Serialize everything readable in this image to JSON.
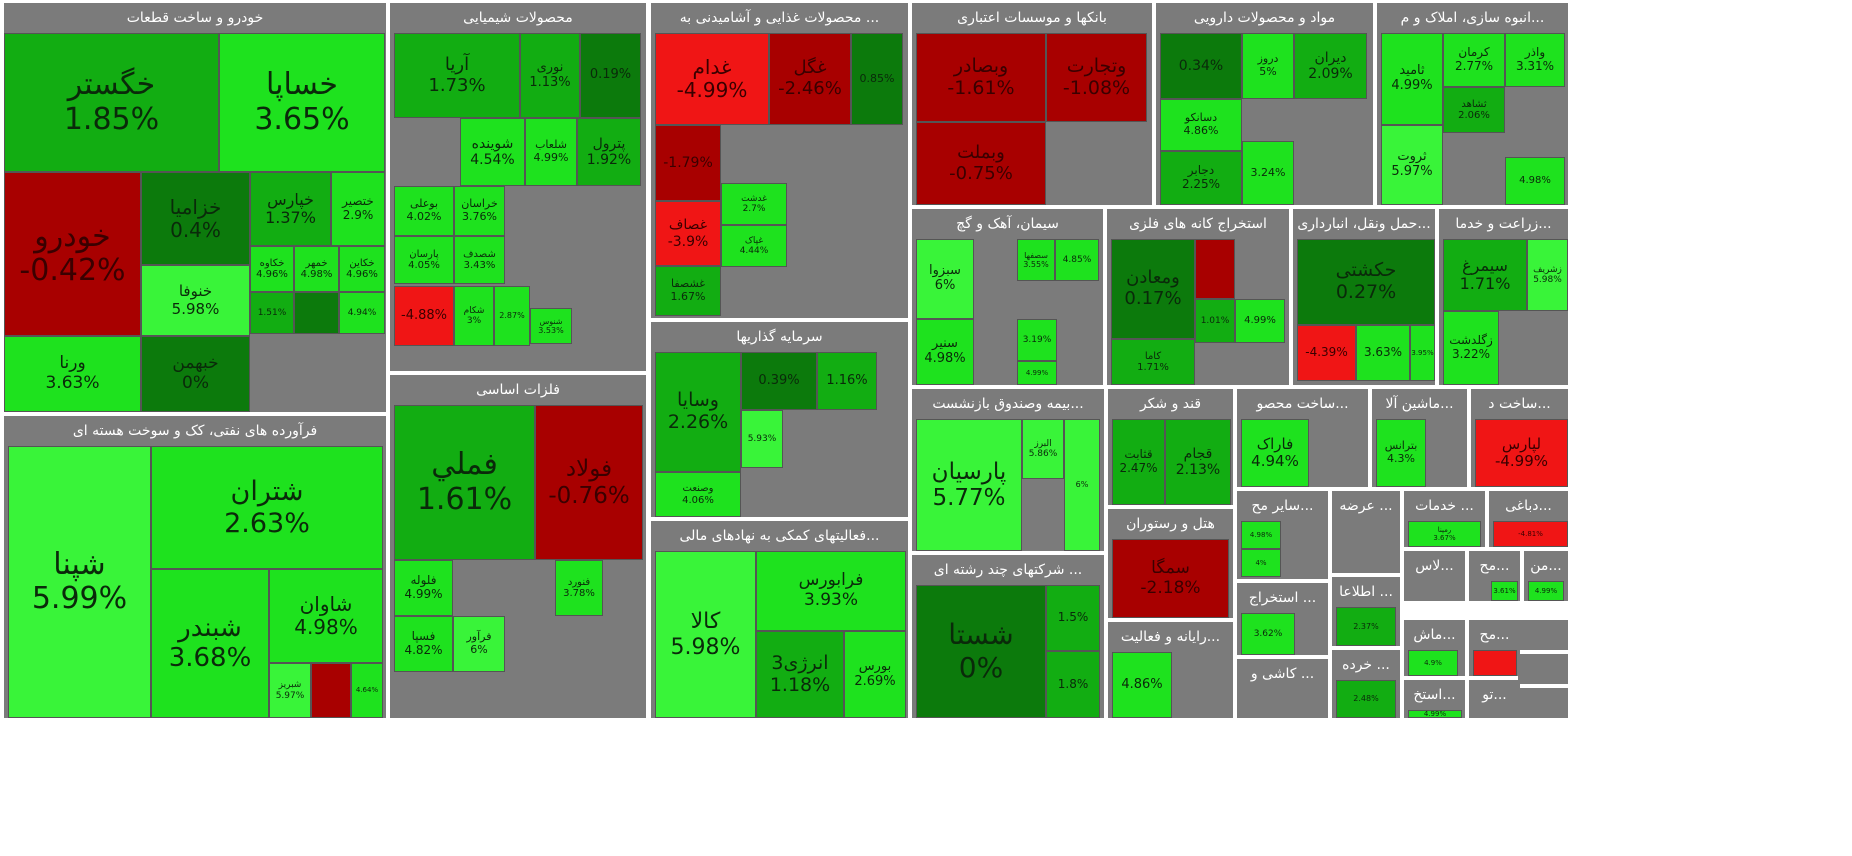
{
  "chart_data": {
    "type": "treemap",
    "colors": {
      "strong_green": "#0c7a0c",
      "mid_green": "#12ad12",
      "bright_green": "#1ee21e",
      "neon_green": "#39f439",
      "strong_red": "#a80000",
      "bright_red": "#f01515",
      "sector_header": "#7b7b7b",
      "background": "#ffffff"
    },
    "sectors": [
      {
        "name": "خودرو و ساخت قطعات",
        "tiles": [
          {
            "symbol": "خگستر",
            "change": "1.85%",
            "value": 1.85
          },
          {
            "symbol": "خساپا",
            "change": "3.65%",
            "value": 3.65
          },
          {
            "symbol": "خودرو",
            "change": "-0.42%",
            "value": -0.42
          },
          {
            "symbol": "خزامیا",
            "change": "0.4%",
            "value": 0.4
          },
          {
            "symbol": "خنوفا",
            "change": "5.98%",
            "value": 5.98
          },
          {
            "symbol": "خپارس",
            "change": "1.37%",
            "value": 1.37
          },
          {
            "symbol": "ختصیر",
            "change": "2.9%",
            "value": 2.9
          },
          {
            "symbol": "ورنا",
            "change": "3.63%",
            "value": 3.63
          },
          {
            "symbol": "خبهمن",
            "change": "0%",
            "value": 0
          },
          {
            "symbol": "خکاوه",
            "change": "4.96%",
            "value": 4.96
          },
          {
            "symbol": "خمهر",
            "change": "4.98%",
            "value": 4.98
          },
          {
            "symbol": "خکاین",
            "change": "4.96%",
            "value": 4.96
          },
          {
            "symbol": "",
            "change": "1.51%",
            "value": 1.51
          },
          {
            "symbol": "",
            "change": "",
            "value": 0.5
          },
          {
            "symbol": "",
            "change": "4.94%",
            "value": 4.94
          }
        ]
      },
      {
        "name": "محصولات شیمیایی",
        "tiles": [
          {
            "symbol": "آریا",
            "change": "1.73%",
            "value": 1.73
          },
          {
            "symbol": "نوری",
            "change": "1.13%",
            "value": 1.13
          },
          {
            "symbol": "",
            "change": "0.19%",
            "value": 0.19
          },
          {
            "symbol": "شوینده",
            "change": "4.54%",
            "value": 4.54
          },
          {
            "symbol": "شلعاب",
            "change": "4.99%",
            "value": 4.99
          },
          {
            "symbol": "پترول",
            "change": "1.92%",
            "value": 1.92
          },
          {
            "symbol": "بوعلی",
            "change": "4.02%",
            "value": 4.02
          },
          {
            "symbol": "خراسان",
            "change": "3.76%",
            "value": 3.76
          },
          {
            "symbol": "پارسان",
            "change": "4.05%",
            "value": 4.05
          },
          {
            "symbol": "شصدف",
            "change": "3.43%",
            "value": 3.43
          },
          {
            "symbol": "شنوس",
            "change": "3.53%",
            "value": 3.53
          },
          {
            "symbol": "شکام",
            "change": "3%",
            "value": 3
          },
          {
            "symbol": "",
            "change": "2.87%",
            "value": 2.87
          },
          {
            "symbol": "",
            "change": "-4.88%",
            "value": -4.88
          }
        ]
      },
      {
        "name": "... محصولات غذایی و آشامیدنی به",
        "tiles": [
          {
            "symbol": "غدام",
            "change": "-4.99%",
            "value": -4.99
          },
          {
            "symbol": "غگل",
            "change": "-2.46%",
            "value": -2.46
          },
          {
            "symbol": "",
            "change": "0.85%",
            "value": 0.85
          },
          {
            "symbol": "",
            "change": "-1.79%",
            "value": -1.79
          },
          {
            "symbol": "غصاف",
            "change": "-3.9%",
            "value": -3.9
          },
          {
            "symbol": "غدشت",
            "change": "2.7%",
            "value": 2.7
          },
          {
            "symbol": "غپاک",
            "change": "4.44%",
            "value": 4.44
          },
          {
            "symbol": "غشصفا",
            "change": "1.67%",
            "value": 1.67
          }
        ]
      },
      {
        "name": "بانکها و موسسات اعتباری",
        "tiles": [
          {
            "symbol": "وبصادر",
            "change": "-1.61%",
            "value": -1.61
          },
          {
            "symbol": "وتجارت",
            "change": "-1.08%",
            "value": -1.08
          },
          {
            "symbol": "وبملت",
            "change": "-0.75%",
            "value": -0.75
          }
        ]
      },
      {
        "name": "مواد و محصولات دارویی",
        "tiles": [
          {
            "symbol": "",
            "change": "0.34%",
            "value": 0.34
          },
          {
            "symbol": "دروز",
            "change": "5%",
            "value": 5
          },
          {
            "symbol": "دیران",
            "change": "2.09%",
            "value": 2.09
          },
          {
            "symbol": "دسانکو",
            "change": "4.86%",
            "value": 4.86
          },
          {
            "symbol": "دجابر",
            "change": "2.25%",
            "value": 2.25
          },
          {
            "symbol": "",
            "change": "3.24%",
            "value": 3.24
          }
        ]
      },
      {
        "name": "...انبوه سازی، املاک و م",
        "tiles": [
          {
            "symbol": "ثامید",
            "change": "4.99%",
            "value": 4.99
          },
          {
            "symbol": "کرمان",
            "change": "2.77%",
            "value": 2.77
          },
          {
            "symbol": "واذر",
            "change": "3.31%",
            "value": 3.31
          },
          {
            "symbol": "ثشاهد",
            "change": "2.06%",
            "value": 2.06
          },
          {
            "symbol": "ثروت",
            "change": "5.97%",
            "value": 5.97
          },
          {
            "symbol": "",
            "change": "4.98%",
            "value": 4.98
          }
        ]
      },
      {
        "name": "فرآورده های نفتی، کک و سوخت هسته ای",
        "tiles": [
          {
            "symbol": "شپنا",
            "change": "5.99%",
            "value": 5.99
          },
          {
            "symbol": "شتران",
            "change": "2.63%",
            "value": 2.63
          },
          {
            "symbol": "شبندر",
            "change": "3.68%",
            "value": 3.68
          },
          {
            "symbol": "شاوان",
            "change": "4.98%",
            "value": 4.98
          },
          {
            "symbol": "شبریز",
            "change": "5.97%",
            "value": 5.97
          },
          {
            "symbol": "",
            "change": "",
            "value": -0.5
          },
          {
            "symbol": "",
            "change": "4.64%",
            "value": 4.64
          }
        ]
      },
      {
        "name": "فلزات اساسی",
        "tiles": [
          {
            "symbol": "فملي",
            "change": "1.61%",
            "value": 1.61
          },
          {
            "symbol": "فولاد",
            "change": "-0.76%",
            "value": -0.76
          },
          {
            "symbol": "فنورد",
            "change": "3.78%",
            "value": 3.78
          },
          {
            "symbol": "فلوله",
            "change": "4.99%",
            "value": 4.99
          },
          {
            "symbol": "فسپا",
            "change": "4.82%",
            "value": 4.82
          },
          {
            "symbol": "فرآور",
            "change": "6%",
            "value": 6
          }
        ]
      },
      {
        "name": "سرمایه گذاریها",
        "tiles": [
          {
            "symbol": "وسایا",
            "change": "2.26%",
            "value": 2.26
          },
          {
            "symbol": "",
            "change": "0.39%",
            "value": 0.39
          },
          {
            "symbol": "",
            "change": "1.16%",
            "value": 1.16
          },
          {
            "symbol": "",
            "change": "5.93%",
            "value": 5.93
          },
          {
            "symbol": "وصنعت",
            "change": "4.06%",
            "value": 4.06
          }
        ]
      },
      {
        "name": "...فعالیتهای کمکی به نهادهای مالی",
        "tiles": [
          {
            "symbol": "کالا",
            "change": "5.98%",
            "value": 5.98
          },
          {
            "symbol": "فرابورس",
            "change": "3.93%",
            "value": 3.93
          },
          {
            "symbol": "انرژی3",
            "change": "1.18%",
            "value": 1.18
          },
          {
            "symbol": "بورس",
            "change": "2.69%",
            "value": 2.69
          }
        ]
      },
      {
        "name": "سیمان، آهک و گچ",
        "tiles": [
          {
            "symbol": "سبزوا",
            "change": "6%",
            "value": 6
          },
          {
            "symbol": "سصفها",
            "change": "3.55%",
            "value": 3.55
          },
          {
            "symbol": "",
            "change": "4.85%",
            "value": 4.85
          },
          {
            "symbol": "سنیر",
            "change": "4.98%",
            "value": 4.98
          },
          {
            "symbol": "",
            "change": "3.19%",
            "value": 3.19
          },
          {
            "symbol": "",
            "change": "4.99%",
            "value": 4.99
          }
        ]
      },
      {
        "name": "استخراج کانه های فلزی",
        "tiles": [
          {
            "symbol": "ومعادن",
            "change": "0.17%",
            "value": 0.17
          },
          {
            "symbol": "کاما",
            "change": "1.71%",
            "value": 1.71
          },
          {
            "symbol": "",
            "change": "",
            "value": -0.5
          },
          {
            "symbol": "",
            "change": "1.01%",
            "value": 1.01
          },
          {
            "symbol": "",
            "change": "4.99%",
            "value": 4.99
          }
        ]
      },
      {
        "name": "...حمل ونقل، انبارداری",
        "tiles": [
          {
            "symbol": "حکشتی",
            "change": "0.27%",
            "value": 0.27
          },
          {
            "symbol": "",
            "change": "-4.39%",
            "value": -4.39
          },
          {
            "symbol": "",
            "change": "3.63%",
            "value": 3.63
          },
          {
            "symbol": "",
            "change": "3.95%",
            "value": 3.95
          }
        ]
      },
      {
        "name": "...زراعت و خدما",
        "tiles": [
          {
            "symbol": "سیمرغ",
            "change": "1.71%",
            "value": 1.71
          },
          {
            "symbol": "زشریف",
            "change": "5.98%",
            "value": 5.98
          },
          {
            "symbol": "زگلدشت",
            "change": "3.22%",
            "value": 3.22
          }
        ]
      },
      {
        "name": "...بیمه وصندوق بازنشست",
        "tiles": [
          {
            "symbol": "پارسیان",
            "change": "5.77%",
            "value": 5.77
          },
          {
            "symbol": "البرز",
            "change": "5.86%",
            "value": 5.86
          },
          {
            "symbol": "",
            "change": "6%",
            "value": 6
          }
        ]
      },
      {
        "name": "قند و شکر",
        "tiles": [
          {
            "symbol": "قثابت",
            "change": "2.47%",
            "value": 2.47
          },
          {
            "symbol": "قجام",
            "change": "2.13%",
            "value": 2.13
          }
        ]
      },
      {
        "name": "...ساخت محصو",
        "tiles": [
          {
            "symbol": "فاراک",
            "change": "4.94%",
            "value": 4.94
          }
        ]
      },
      {
        "name": "...ماشین آلا",
        "tiles": [
          {
            "symbol": "بترانس",
            "change": "4.3%",
            "value": 4.3
          }
        ]
      },
      {
        "name": "...ساخت د",
        "tiles": [
          {
            "symbol": "لپارس",
            "change": "-4.99%",
            "value": -4.99
          }
        ]
      },
      {
        "name": "هتل و رستوران",
        "tiles": [
          {
            "symbol": "سمگا",
            "change": "-2.18%",
            "value": -2.18
          }
        ]
      },
      {
        "name": "... شرکتهای چند رشته ای",
        "tiles": [
          {
            "symbol": "شستا",
            "change": "0%",
            "value": 0
          },
          {
            "symbol": "",
            "change": "1.5%",
            "value": 1.5
          },
          {
            "symbol": "",
            "change": "1.8%",
            "value": 1.8
          }
        ]
      },
      {
        "name": "...سایر مح",
        "tiles": [
          {
            "symbol": "",
            "change": "4.98%",
            "value": 4.98
          },
          {
            "symbol": "",
            "change": "4%",
            "value": 4
          }
        ]
      },
      {
        "name": "... عرضه",
        "tiles": []
      },
      {
        "name": "... خدمات",
        "tiles": [
          {
            "symbol": "رمپنا",
            "change": "3.67%",
            "value": 3.67
          }
        ]
      },
      {
        "name": "...دباغی",
        "tiles": [
          {
            "symbol": "",
            "change": "-4.81%",
            "value": -4.81
          }
        ]
      },
      {
        "name": "... استخراج",
        "tiles": [
          {
            "symbol": "",
            "change": "3.62%",
            "value": 3.62
          }
        ]
      },
      {
        "name": "... اطلاعا",
        "tiles": [
          {
            "symbol": "",
            "change": "2.37%",
            "value": 2.37
          }
        ]
      },
      {
        "name": "...رایانه و فعالیت",
        "tiles": [
          {
            "symbol": "",
            "change": "4.86%",
            "value": 4.86
          }
        ]
      },
      {
        "name": "... کاشی و",
        "tiles": []
      },
      {
        "name": "... خرده",
        "tiles": [
          {
            "symbol": "",
            "change": "2.48%",
            "value": 2.48
          }
        ]
      },
      {
        "name": "...لاس",
        "tiles": []
      },
      {
        "name": "...مح",
        "tiles": [
          {
            "symbol": "",
            "change": "3.61%",
            "value": 3.61
          }
        ]
      },
      {
        "name": "...من",
        "tiles": [
          {
            "symbol": "",
            "change": "4.99%",
            "value": 4.99
          }
        ]
      },
      {
        "name": "...ماش",
        "tiles": [
          {
            "symbol": "",
            "change": "4.9%",
            "value": 4.9
          }
        ]
      },
      {
        "name": "...مح",
        "tiles": [
          {
            "symbol": "",
            "change": "",
            "value": -4
          }
        ]
      },
      {
        "name": "...استخ",
        "tiles": [
          {
            "symbol": "",
            "change": "4.99%",
            "value": 4.99
          }
        ]
      },
      {
        "name": "...تو",
        "tiles": []
      },
      {
        "name": "",
        "tiles": []
      },
      {
        "name": "",
        "tiles": []
      },
      {
        "name": "",
        "tiles": []
      }
    ]
  }
}
